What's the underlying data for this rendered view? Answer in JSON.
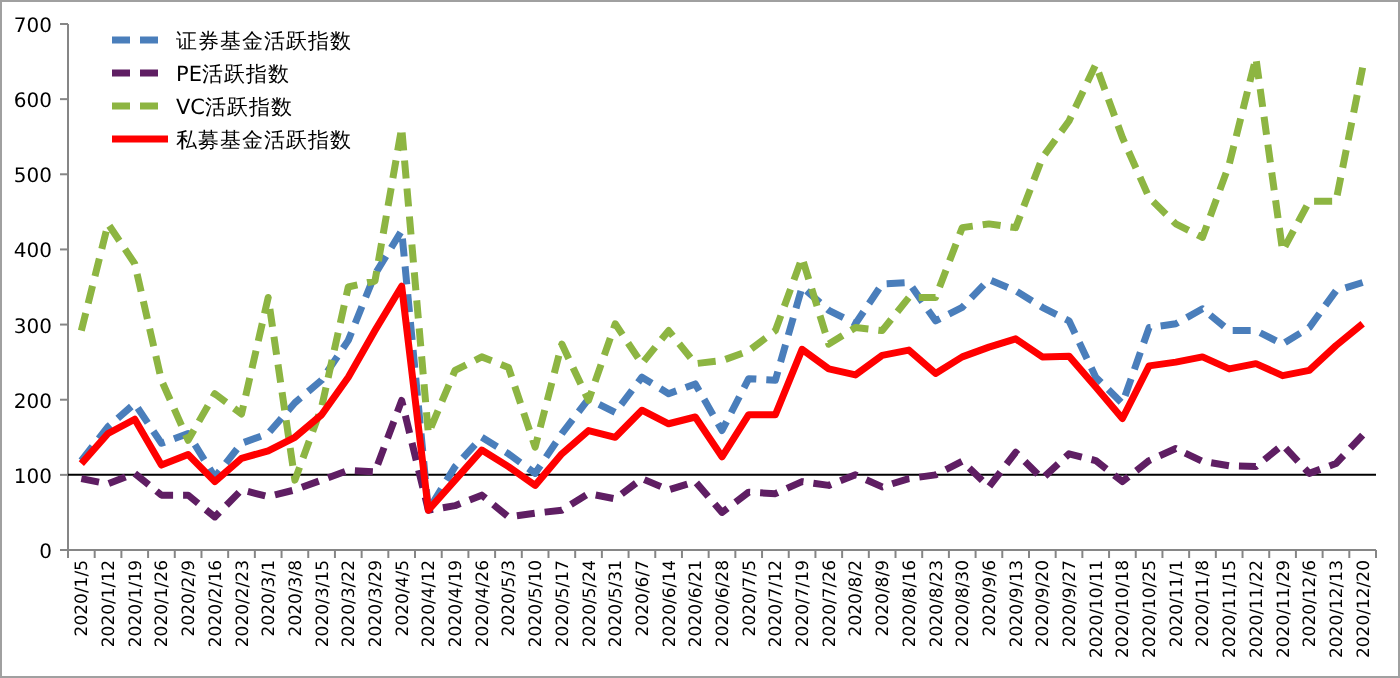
{
  "chart_data": {
    "type": "line",
    "categories": [
      "2020/1/5",
      "2020/1/12",
      "2020/1/19",
      "2020/1/26",
      "2020/2/9",
      "2020/2/16",
      "2020/2/23",
      "2020/3/1",
      "2020/3/8",
      "2020/3/15",
      "2020/3/22",
      "2020/3/29",
      "2020/4/5",
      "2020/4/12",
      "2020/4/19",
      "2020/4/26",
      "2020/5/3",
      "2020/5/10",
      "2020/5/17",
      "2020/5/24",
      "2020/5/31",
      "2020/6/7",
      "2020/6/14",
      "2020/6/21",
      "2020/6/28",
      "2020/7/5",
      "2020/7/12",
      "2020/7/19",
      "2020/7/26",
      "2020/8/2",
      "2020/8/9",
      "2020/8/16",
      "2020/8/23",
      "2020/8/30",
      "2020/9/6",
      "2020/9/13",
      "2020/9/20",
      "2020/9/27",
      "2020/10/11",
      "2020/10/18",
      "2020/10/25",
      "2020/11/1",
      "2020/11/8",
      "2020/11/15",
      "2020/11/22",
      "2020/11/29",
      "2020/12/6",
      "2020/12/13",
      "2020/12/20"
    ],
    "series": [
      {
        "name": "证券基金活跃指数",
        "color": "#4a7ebb",
        "line_style": "dashed",
        "values": [
          119,
          164,
          195,
          142,
          155,
          97,
          142,
          155,
          196,
          226,
          279,
          367,
          425,
          53,
          111,
          150,
          128,
          102,
          155,
          201,
          183,
          230,
          208,
          221,
          159,
          228,
          226,
          350,
          319,
          301,
          354,
          356,
          305,
          323,
          360,
          345,
          323,
          305,
          230,
          195,
          296,
          301,
          321,
          292,
          292,
          274,
          296,
          345,
          356
        ]
      },
      {
        "name": "PE活跃指数",
        "color": "#5f1e63",
        "line_style": "dashed",
        "values": [
          95,
          88,
          102,
          73,
          73,
          44,
          80,
          71,
          80,
          93,
          106,
          104,
          199,
          53,
          59,
          73,
          44,
          49,
          53,
          75,
          68,
          95,
          80,
          91,
          50,
          77,
          75,
          91,
          86,
          100,
          84,
          95,
          100,
          118,
          84,
          130,
          95,
          128,
          119,
          91,
          119,
          135,
          118,
          112,
          111,
          140,
          102,
          115,
          153
        ]
      },
      {
        "name": "VC活跃指数",
        "color": "#8db542",
        "line_style": "dashed",
        "values": [
          292,
          434,
          381,
          226,
          146,
          208,
          181,
          336,
          93,
          190,
          350,
          358,
          562,
          155,
          239,
          257,
          243,
          137,
          274,
          199,
          301,
          248,
          292,
          248,
          252,
          265,
          292,
          389,
          274,
          296,
          292,
          336,
          336,
          429,
          434,
          429,
          522,
          571,
          646,
          549,
          469,
          434,
          416,
          513,
          655,
          398,
          464,
          464,
          642
        ]
      },
      {
        "name": "私募基金活跃指数",
        "color": "#ff0000",
        "line_style": "solid",
        "values": [
          115,
          155,
          174,
          113,
          127,
          91,
          122,
          132,
          150,
          180,
          230,
          292,
          351,
          53,
          93,
          133,
          111,
          86,
          128,
          159,
          150,
          186,
          168,
          177,
          124,
          180,
          180,
          267,
          241,
          233,
          259,
          266,
          235,
          257,
          270,
          281,
          257,
          258,
          217,
          175,
          245,
          250,
          257,
          241,
          248,
          232,
          239,
          272,
          301
        ]
      }
    ],
    "ylim": [
      0,
      700
    ],
    "yticks": [
      0,
      100,
      200,
      300,
      400,
      500,
      600,
      700
    ],
    "ref_lines": [
      {
        "axis": "y",
        "value": 100,
        "color": "#000000"
      }
    ],
    "grid": false,
    "legend": "top left"
  }
}
